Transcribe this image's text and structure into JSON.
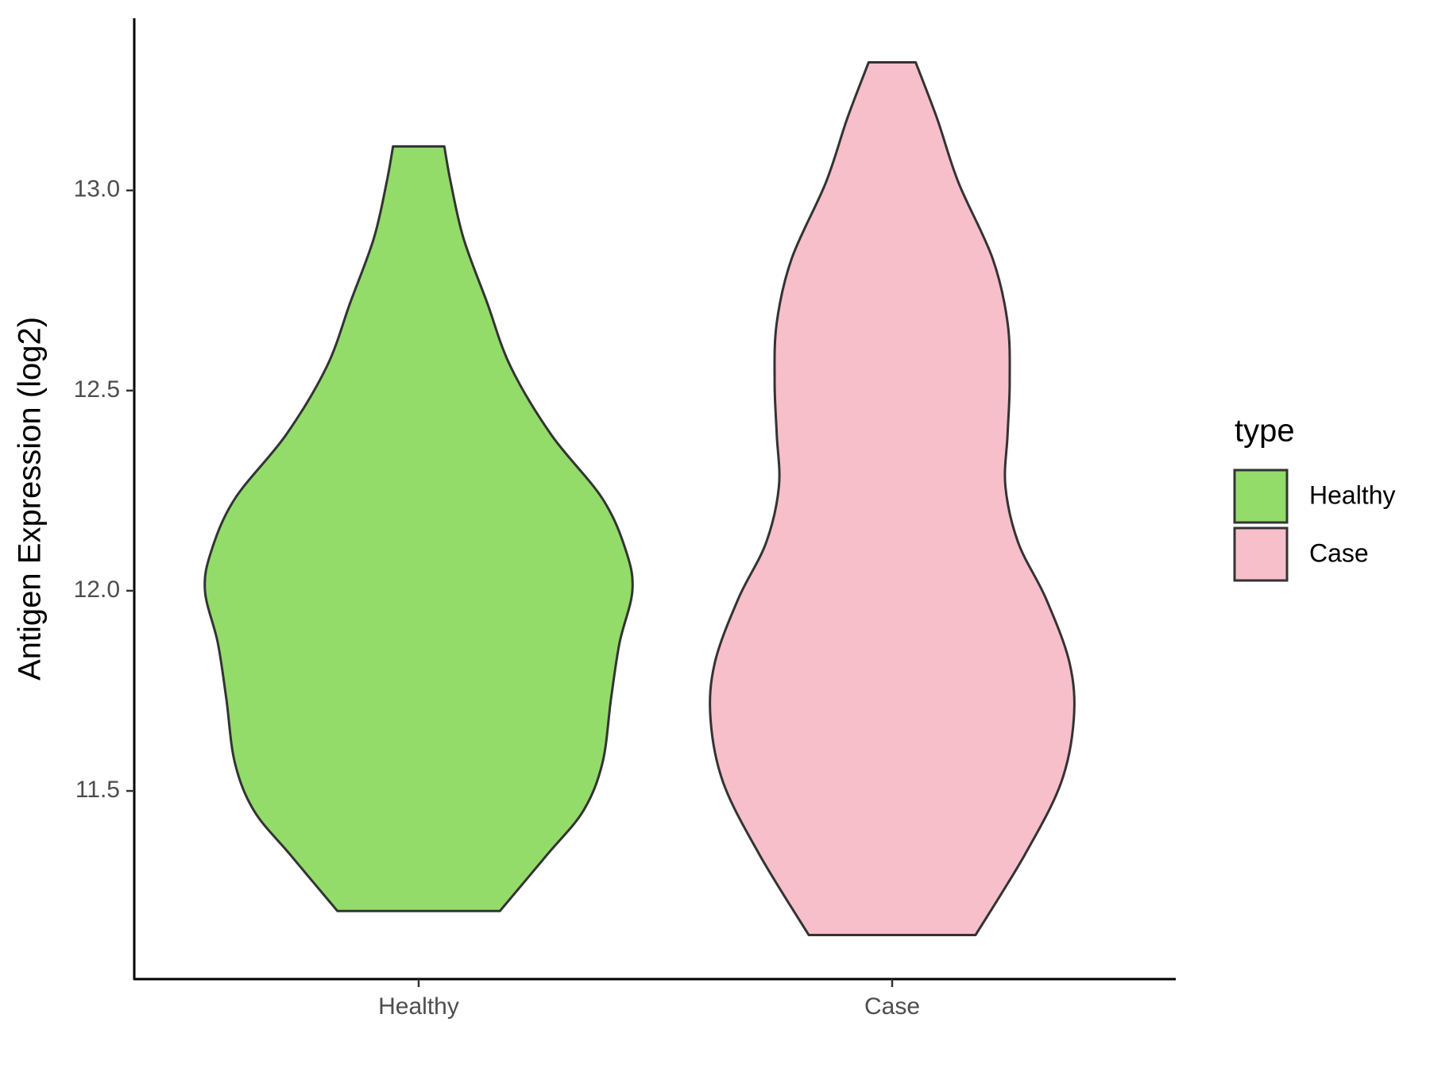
{
  "chart_data": {
    "type": "violin",
    "y_label": "Antigen Expression (log2)",
    "categories": [
      "Healthy",
      "Case"
    ],
    "series": [
      {
        "name": "Healthy",
        "color": "#93dc6a",
        "y": [
          13.11,
          13.02,
          12.88,
          12.72,
          12.56,
          12.39,
          12.23,
          12.1,
          12.0,
          11.87,
          11.73,
          11.57,
          11.45,
          11.34,
          11.2
        ],
        "density": [
          0.12,
          0.15,
          0.21,
          0.32,
          0.43,
          0.62,
          0.86,
          0.97,
          1.0,
          0.94,
          0.9,
          0.86,
          0.77,
          0.6,
          0.38
        ]
      },
      {
        "name": "Case",
        "color": "#f7bfca",
        "y": [
          13.32,
          13.18,
          13.02,
          12.83,
          12.67,
          12.52,
          12.39,
          12.26,
          12.12,
          11.98,
          11.82,
          11.68,
          11.52,
          11.34,
          11.14
        ],
        "density": [
          0.11,
          0.21,
          0.31,
          0.47,
          0.54,
          0.55,
          0.54,
          0.53,
          0.59,
          0.72,
          0.83,
          0.85,
          0.79,
          0.62,
          0.39
        ]
      }
    ],
    "ylim": [
      11.03,
      13.43
    ],
    "yticks": [
      {
        "value": 11.5,
        "label": "11.5"
      },
      {
        "value": 12,
        "label": "12.0"
      },
      12.5,
      {
        "value": 13,
        "label": "13.0"
      }
    ],
    "legend": {
      "title": "type",
      "position": "right"
    }
  }
}
